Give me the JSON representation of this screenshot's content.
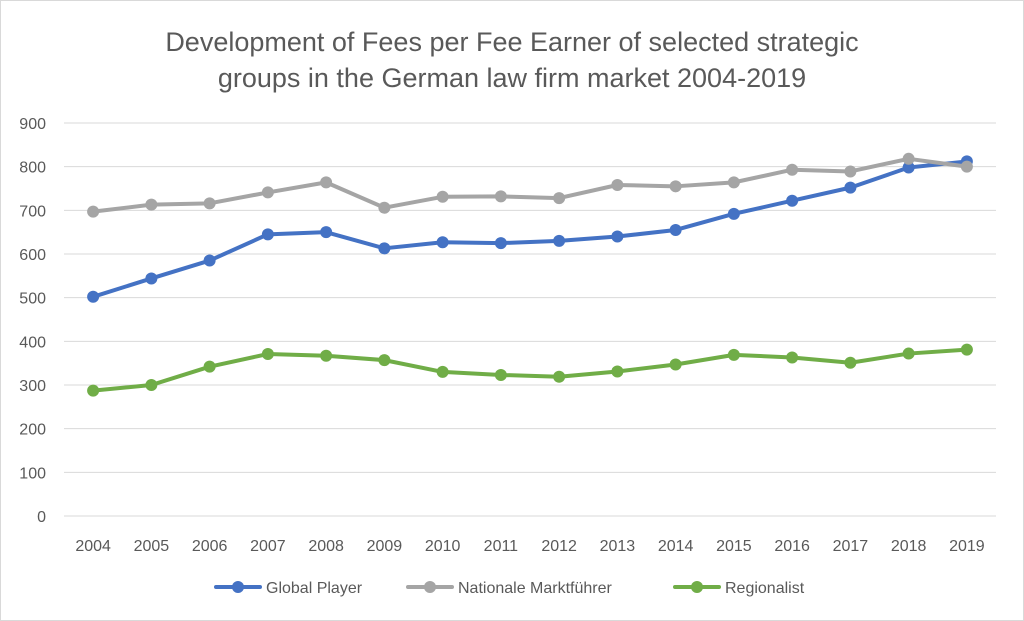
{
  "chart_data": {
    "type": "line",
    "title_lines": [
      "Development of Fees per Fee Earner of selected strategic",
      "groups in the German law firm market 2004-2019"
    ],
    "xlabel": "",
    "ylabel": "",
    "categories": [
      "2004",
      "2005",
      "2006",
      "2007",
      "2008",
      "2009",
      "2010",
      "2011",
      "2012",
      "2013",
      "2014",
      "2015",
      "2016",
      "2017",
      "2018",
      "2019"
    ],
    "y_ticks": [
      "0",
      "100",
      "200",
      "300",
      "400",
      "500",
      "600",
      "700",
      "800",
      "900"
    ],
    "ylim": [
      0,
      900
    ],
    "grid": true,
    "legend_position": "bottom",
    "series": [
      {
        "name": "Global Player",
        "color": "#4472c4",
        "values": [
          502,
          544,
          585,
          645,
          650,
          613,
          627,
          625,
          630,
          640,
          655,
          692,
          722,
          752,
          798,
          812
        ]
      },
      {
        "name": "Nationale Marktführer",
        "color": "#a5a5a5",
        "values": [
          697,
          713,
          716,
          741,
          764,
          706,
          731,
          732,
          728,
          758,
          755,
          764,
          793,
          789,
          818,
          800
        ]
      },
      {
        "name": "Regionalist",
        "color": "#70ad47",
        "values": [
          287,
          300,
          342,
          371,
          367,
          357,
          330,
          323,
          319,
          331,
          347,
          369,
          363,
          351,
          372,
          381
        ]
      }
    ]
  }
}
